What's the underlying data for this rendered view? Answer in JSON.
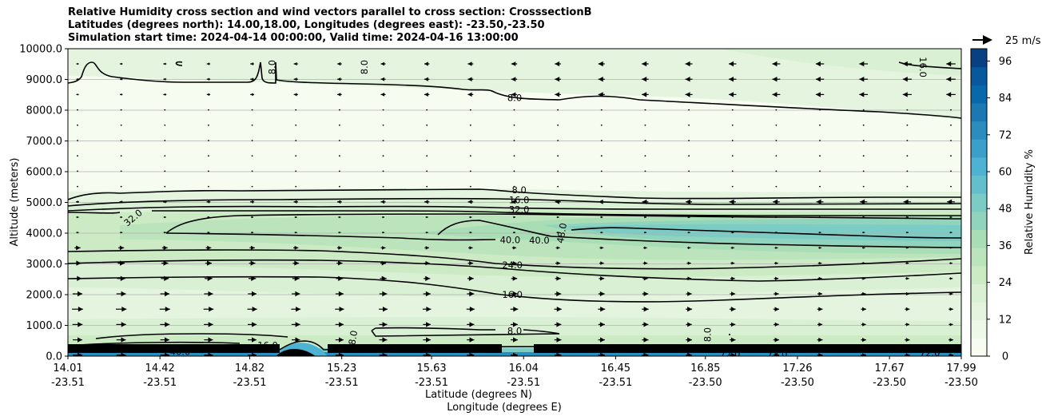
{
  "chart_data": {
    "type": "heatmap",
    "title_lines": [
      "Relative Humidity cross section and wind vectors parallel to cross section: CrosssectionB",
      "Latitudes (degrees north): 14.00,18.00, Longitudes (degrees east): -23.50,-23.50",
      "Simulation start time: 2024-04-14 00:00:00, Valid time: 2024-04-16 13:00:00"
    ],
    "xlabel": "Latitude (degrees N)",
    "xlabel2": "Longitude (degrees E)",
    "ylabel": "Altitude (meters)",
    "xlim": [
      14.01,
      17.99
    ],
    "ylim": [
      0,
      10000
    ],
    "grid": "horizontal",
    "x_ticks": [
      {
        "lat": "14.01",
        "lon": "-23.51",
        "value": 14.01
      },
      {
        "lat": "14.42",
        "lon": "-23.51",
        "value": 14.42
      },
      {
        "lat": "14.82",
        "lon": "-23.51",
        "value": 14.82
      },
      {
        "lat": "15.23",
        "lon": "-23.51",
        "value": 15.23
      },
      {
        "lat": "15.63",
        "lon": "-23.51",
        "value": 15.63
      },
      {
        "lat": "16.04",
        "lon": "-23.51",
        "value": 16.04
      },
      {
        "lat": "16.45",
        "lon": "-23.51",
        "value": 16.45
      },
      {
        "lat": "16.85",
        "lon": "-23.50",
        "value": 16.85
      },
      {
        "lat": "17.26",
        "lon": "-23.50",
        "value": 17.26
      },
      {
        "lat": "17.67",
        "lon": "-23.50",
        "value": 17.67
      },
      {
        "lat": "17.99",
        "lon": "-23.50",
        "value": 17.99
      }
    ],
    "y_ticks": [
      "0.0",
      "1000.0",
      "2000.0",
      "3000.0",
      "4000.0",
      "5000.0",
      "6000.0",
      "7000.0",
      "8000.0",
      "9000.0",
      "10000.0"
    ],
    "y_tick_values": [
      0,
      1000,
      2000,
      3000,
      4000,
      5000,
      6000,
      7000,
      8000,
      9000,
      10000
    ],
    "colorbar": {
      "label": "Relative Humidity %",
      "range": [
        0,
        100
      ],
      "ticks": [
        "0",
        "12",
        "24",
        "36",
        "48",
        "60",
        "72",
        "84",
        "96"
      ],
      "tick_values": [
        0,
        12,
        24,
        36,
        48,
        60,
        72,
        84,
        96
      ],
      "colors": [
        "#f7fcf0",
        "#eef8e8",
        "#e4f4df",
        "#daf0d4",
        "#ccebc5",
        "#bbe4bc",
        "#a8ddb5",
        "#90d4bd",
        "#7bccc4",
        "#64bfcc",
        "#4eb3d3",
        "#3aa0ca",
        "#2b8cbe",
        "#1b78b3",
        "#0868ac",
        "#08589e",
        "#084081"
      ]
    },
    "quiver_key": {
      "label": "25 m/s",
      "value": 25
    },
    "contour_labels": [
      {
        "text": "8.0",
        "x": 14.92,
        "y": 9400,
        "rotate": -90
      },
      {
        "text": "8.0",
        "x": 15.33,
        "y": 9400,
        "rotate": -90
      },
      {
        "text": "16.0",
        "x": 17.82,
        "y": 9400,
        "rotate": 90
      },
      {
        "text": "8.0",
        "x": 16.0,
        "y": 8400,
        "rotate": 0
      },
      {
        "text": "8.0",
        "x": 16.02,
        "y": 5400,
        "rotate": 0
      },
      {
        "text": "16.0",
        "x": 16.02,
        "y": 5080,
        "rotate": 0
      },
      {
        "text": "32.0",
        "x": 16.02,
        "y": 4770,
        "rotate": 0
      },
      {
        "text": "32.0",
        "x": 14.3,
        "y": 4500,
        "rotate": -40
      },
      {
        "text": "40.0",
        "x": 15.98,
        "y": 3780,
        "rotate": 0
      },
      {
        "text": "40.0",
        "x": 16.11,
        "y": 3760,
        "rotate": 0
      },
      {
        "text": "48.0",
        "x": 16.21,
        "y": 4000,
        "rotate": -80
      },
      {
        "text": "24.0",
        "x": 15.99,
        "y": 2960,
        "rotate": 0
      },
      {
        "text": "16.0",
        "x": 15.99,
        "y": 2000,
        "rotate": 0
      },
      {
        "text": "8.0",
        "x": 16.0,
        "y": 820,
        "rotate": 0
      },
      {
        "text": "16.0",
        "x": 14.9,
        "y": 350,
        "rotate": 0
      },
      {
        "text": "8.0",
        "x": 15.28,
        "y": 600,
        "rotate": -80
      },
      {
        "text": "8.0",
        "x": 16.86,
        "y": 700,
        "rotate": -90
      },
      {
        "text": "24.0",
        "x": 14.64,
        "y": 230,
        "rotate": 0
      },
      {
        "text": "40.0",
        "x": 14.51,
        "y": 140,
        "rotate": 0
      },
      {
        "text": "72.0",
        "x": 16.96,
        "y": 60,
        "rotate": 0
      },
      {
        "text": "72.0",
        "x": 17.17,
        "y": 60,
        "rotate": 0
      },
      {
        "text": "72.0",
        "x": 17.85,
        "y": 100,
        "rotate": 0
      }
    ]
  }
}
